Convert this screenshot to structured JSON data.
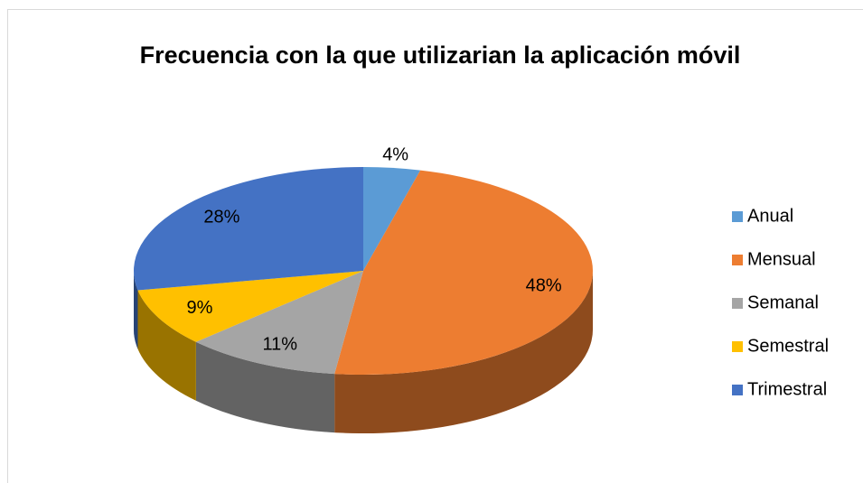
{
  "chart_data": {
    "type": "pie3d",
    "title": "Frecuencia con la que utilizarian la aplicación móvil",
    "categories": [
      "Anual",
      "Mensual",
      "Semanal",
      "Semestral",
      "Trimestral"
    ],
    "values": [
      4,
      48,
      11,
      9,
      28
    ],
    "value_labels": [
      "4%",
      "48%",
      "11%",
      "9%",
      "28%"
    ],
    "colors": [
      "#5b9bd5",
      "#ed7d31",
      "#a5a5a5",
      "#ffc000",
      "#4472c4"
    ],
    "legend": "right"
  }
}
